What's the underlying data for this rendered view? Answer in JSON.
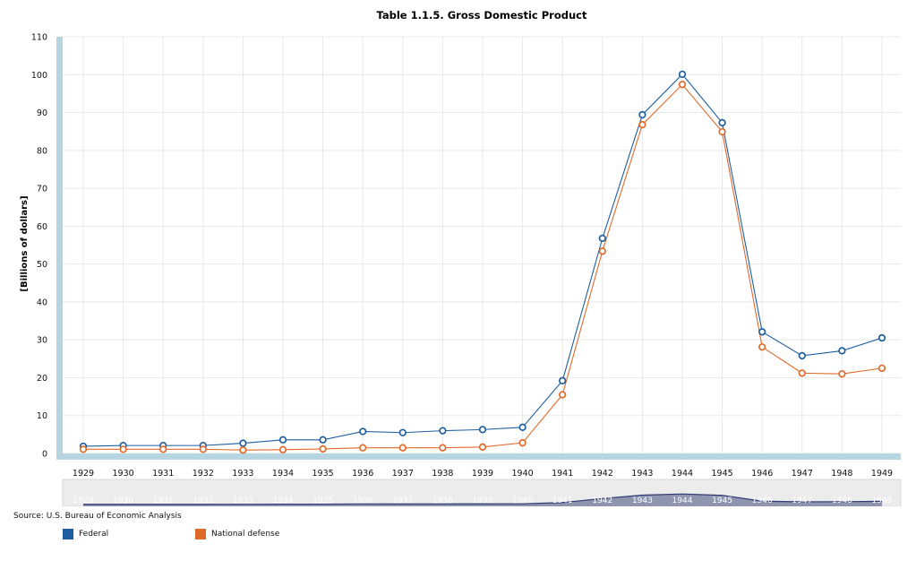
{
  "chart_data": {
    "type": "line",
    "title": "Table 1.1.5. Gross Domestic Product",
    "ylabel": "[Billions of dollars]",
    "xlabel": "",
    "ylim": [
      0,
      110
    ],
    "yticks": [
      0,
      10,
      20,
      30,
      40,
      50,
      60,
      70,
      80,
      90,
      100,
      110
    ],
    "categories": [
      "1929",
      "1930",
      "1931",
      "1932",
      "1933",
      "1934",
      "1935",
      "1936",
      "1937",
      "1938",
      "1939",
      "1940",
      "1941",
      "1942",
      "1943",
      "1944",
      "1945",
      "1946",
      "1947",
      "1948",
      "1949"
    ],
    "series": [
      {
        "name": "Federal",
        "color": "#1f5f9f",
        "values": [
          1.9,
          2.1,
          2.1,
          2.1,
          2.7,
          3.6,
          3.6,
          5.8,
          5.5,
          6.0,
          6.3,
          6.9,
          19.2,
          56.8,
          89.4,
          100.1,
          87.3,
          32.1,
          25.8,
          27.1,
          30.5
        ]
      },
      {
        "name": "National defense",
        "color": "#e06a2a",
        "values": [
          1.1,
          1.1,
          1.1,
          1.1,
          0.9,
          1.0,
          1.2,
          1.5,
          1.5,
          1.5,
          1.7,
          2.8,
          15.5,
          53.4,
          86.8,
          97.4,
          84.9,
          28.1,
          21.2,
          21.0,
          22.5
        ]
      }
    ],
    "grid": true,
    "legend": "bottom-left",
    "navigator": true
  },
  "source_text": "Source: U.S. Bureau of Economic Analysis",
  "colors": {
    "axis_band": "#b5d6e0",
    "grid": "#e8e8e8",
    "nav_bg": "#ececec",
    "nav_fill": "#8a90ab",
    "nav_line": "#2d3a75"
  }
}
